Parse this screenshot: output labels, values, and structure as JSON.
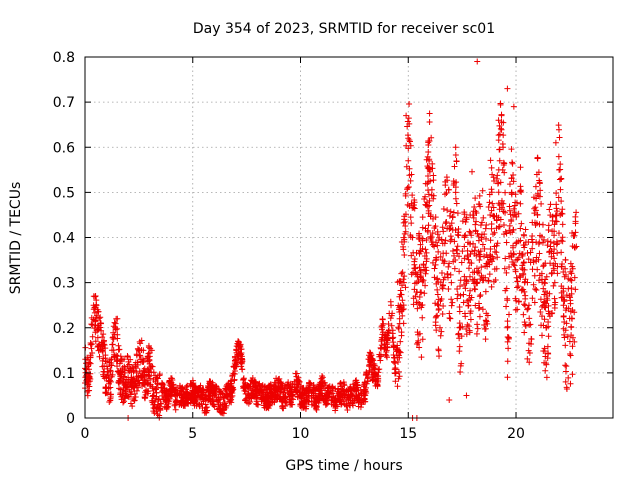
{
  "chart_data": {
    "type": "scatter",
    "title": "Day 354 of 2023, SRMTID for receiver sc01",
    "xlabel": "GPS time / hours",
    "ylabel": "SRMTID / TECUs",
    "xlim": [
      0,
      24.5
    ],
    "ylim": [
      0,
      0.8
    ],
    "xticks": [
      0,
      5,
      10,
      15,
      20
    ],
    "yticks": [
      0,
      0.1,
      0.2,
      0.3,
      0.4,
      0.5,
      0.6,
      0.7,
      0.8
    ],
    "xtick_labels": [
      "0",
      "5",
      "10",
      "15",
      "20"
    ],
    "ytick_labels": [
      "0",
      "0.1",
      "0.2",
      "0.3",
      "0.4",
      "0.5",
      "0.6",
      "0.7",
      "0.8"
    ],
    "grid": true,
    "marker": "plus",
    "color": "#ee0000",
    "series": [
      {
        "name": "sc01",
        "x": [
          0.0,
          0.2,
          0.4,
          0.6,
          0.8,
          1.0,
          1.2,
          1.4,
          1.6,
          1.8,
          2.0,
          2.2,
          2.4,
          2.6,
          2.8,
          3.0,
          3.2,
          3.4,
          3.6,
          3.8,
          4.0,
          4.2,
          4.4,
          4.6,
          4.8,
          5.0,
          5.2,
          5.4,
          5.6,
          5.8,
          6.0,
          6.2,
          6.4,
          6.6,
          6.8,
          7.0,
          7.2,
          7.4,
          7.6,
          7.8,
          8.0,
          8.2,
          8.4,
          8.6,
          8.8,
          9.0,
          9.2,
          9.4,
          9.6,
          9.8,
          10.0,
          10.2,
          10.4,
          10.6,
          10.8,
          11.0,
          11.2,
          11.4,
          11.6,
          11.8,
          12.0,
          12.2,
          12.4,
          12.6,
          12.8,
          13.0,
          13.2,
          13.4,
          13.6,
          13.8,
          14.0,
          14.2,
          14.4,
          14.6,
          14.8,
          15.0,
          15.2,
          15.4,
          15.6,
          15.8,
          16.0,
          16.2,
          16.4,
          16.6,
          16.8,
          17.0,
          17.2,
          17.4,
          17.6,
          17.8,
          18.0,
          18.2,
          18.4,
          18.6,
          18.8,
          19.0,
          19.2,
          19.4,
          19.6,
          19.8,
          20.0,
          20.2,
          20.4,
          20.6,
          20.8,
          21.0,
          21.2,
          21.4,
          21.6,
          21.8,
          22.0,
          22.2,
          22.4,
          22.6,
          22.8,
          0.5,
          1.5,
          3.1,
          7.1,
          14.9,
          15.0,
          18.2,
          19.6,
          19.9,
          17.2,
          17.7,
          16.9,
          21.85,
          22.6,
          2.0,
          15.2,
          15.4
        ],
        "y": [
          0.11,
          0.09,
          0.25,
          0.2,
          0.15,
          0.09,
          0.08,
          0.2,
          0.1,
          0.08,
          0.09,
          0.07,
          0.1,
          0.13,
          0.08,
          0.12,
          0.05,
          0.04,
          0.06,
          0.04,
          0.07,
          0.04,
          0.05,
          0.04,
          0.05,
          0.06,
          0.04,
          0.05,
          0.03,
          0.06,
          0.05,
          0.04,
          0.03,
          0.05,
          0.06,
          0.13,
          0.16,
          0.06,
          0.05,
          0.07,
          0.05,
          0.06,
          0.04,
          0.05,
          0.06,
          0.07,
          0.04,
          0.06,
          0.05,
          0.08,
          0.05,
          0.04,
          0.06,
          0.05,
          0.04,
          0.07,
          0.05,
          0.06,
          0.04,
          0.05,
          0.06,
          0.04,
          0.05,
          0.06,
          0.04,
          0.06,
          0.13,
          0.1,
          0.08,
          0.2,
          0.15,
          0.25,
          0.1,
          0.22,
          0.3,
          0.62,
          0.4,
          0.3,
          0.25,
          0.42,
          0.55,
          0.38,
          0.25,
          0.35,
          0.42,
          0.3,
          0.5,
          0.2,
          0.38,
          0.25,
          0.45,
          0.3,
          0.4,
          0.28,
          0.45,
          0.38,
          0.55,
          0.6,
          0.2,
          0.5,
          0.35,
          0.42,
          0.3,
          0.25,
          0.35,
          0.45,
          0.32,
          0.2,
          0.38,
          0.3,
          0.55,
          0.25,
          0.18,
          0.22,
          0.38,
          0.17,
          0.22,
          0.15,
          0.17,
          0.67,
          0.57,
          0.79,
          0.73,
          0.69,
          0.6,
          0.05,
          0.04,
          0.61,
          0.41,
          0.0,
          0.0,
          0.0
        ],
        "n_points_approx": 2800
      }
    ]
  }
}
